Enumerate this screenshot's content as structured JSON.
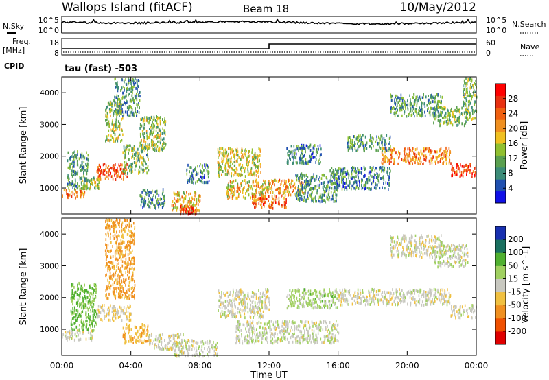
{
  "header": {
    "station": "Wallops Island (fitACF)",
    "beam": "Beam 18",
    "date": "10/May/2012"
  },
  "top_panels": {
    "nsky_label": "N.Sky",
    "nsky_max": "10^5",
    "nsky_min": "10^0",
    "nsearch_max": "10^5",
    "nsearch_min": "10^0",
    "nsearch_label": "N.Search",
    "freq_label_1": "Freq.",
    "freq_label_2": "[MHz]",
    "freq_max": "18",
    "freq_min": "8",
    "nave_max": "60",
    "nave_min": "0",
    "nave_label": "Nave",
    "cpid_label": "CPID",
    "cpid_text": "tau (fast) -503"
  },
  "colors": {
    "power": [
      "#1010e8",
      "#2050b0",
      "#3c8c78",
      "#5aa050",
      "#90c030",
      "#f0c020",
      "#f09020",
      "#f06010",
      "#e83010",
      "#ff0000"
    ],
    "velocity": [
      "#e00000",
      "#f05000",
      "#f09020",
      "#f0c040",
      "#c8c8c0",
      "#a0d060",
      "#50b030",
      "#1a7060",
      "#1830b0"
    ]
  },
  "chart_data": [
    {
      "type": "heatmap",
      "name": "Power",
      "ylabel": "Slant Range [km]",
      "ylim": [
        180,
        4500
      ],
      "yticks": [
        "1000",
        "2000",
        "3000",
        "4000"
      ],
      "xlim": [
        0,
        24
      ],
      "colorbar_label": "Power [dB]",
      "colorbar_ticks": [
        "4",
        "8",
        "12",
        "16",
        "20",
        "24",
        "28"
      ],
      "colorbar_range": [
        0,
        32
      ],
      "echo_bands": [
        {
          "t0": 0.0,
          "t1": 1.3,
          "r0": 700,
          "r1": 1000,
          "value": 22
        },
        {
          "t0": 0.3,
          "t1": 1.5,
          "r0": 1000,
          "r1": 2200,
          "value": 10
        },
        {
          "t0": 1.0,
          "t1": 2.2,
          "r0": 1000,
          "r1": 1400,
          "value": 14
        },
        {
          "t0": 2.0,
          "t1": 3.8,
          "r0": 1300,
          "r1": 1800,
          "value": 25
        },
        {
          "t0": 2.5,
          "t1": 3.5,
          "r0": 2500,
          "r1": 3800,
          "value": 14
        },
        {
          "t0": 3.0,
          "t1": 4.5,
          "r0": 3300,
          "r1": 4500,
          "value": 10
        },
        {
          "t0": 3.5,
          "t1": 5.0,
          "r0": 1500,
          "r1": 2400,
          "value": 12
        },
        {
          "t0": 4.5,
          "t1": 6.0,
          "r0": 2200,
          "r1": 3300,
          "value": 14
        },
        {
          "t0": 4.5,
          "t1": 6.0,
          "r0": 400,
          "r1": 1000,
          "value": 8
        },
        {
          "t0": 6.3,
          "t1": 8.0,
          "r0": 300,
          "r1": 900,
          "value": 18
        },
        {
          "t0": 6.8,
          "t1": 7.8,
          "r0": 180,
          "r1": 500,
          "value": 30
        },
        {
          "t0": 7.2,
          "t1": 8.5,
          "r0": 1200,
          "r1": 1800,
          "value": 8
        },
        {
          "t0": 9.0,
          "t1": 11.5,
          "r0": 1400,
          "r1": 2300,
          "value": 16
        },
        {
          "t0": 9.5,
          "t1": 12.0,
          "r0": 700,
          "r1": 1300,
          "value": 18
        },
        {
          "t0": 11.0,
          "t1": 13.0,
          "r0": 400,
          "r1": 800,
          "value": 24
        },
        {
          "t0": 12.0,
          "t1": 14.0,
          "r0": 800,
          "r1": 1300,
          "value": 20
        },
        {
          "t0": 13.5,
          "t1": 16.0,
          "r0": 600,
          "r1": 1500,
          "value": 10
        },
        {
          "t0": 13.0,
          "t1": 15.0,
          "r0": 1800,
          "r1": 2400,
          "value": 8
        },
        {
          "t0": 15.5,
          "t1": 19.0,
          "r0": 1000,
          "r1": 1700,
          "value": 8
        },
        {
          "t0": 18.5,
          "t1": 22.5,
          "r0": 1800,
          "r1": 2300,
          "value": 22
        },
        {
          "t0": 16.5,
          "t1": 19.0,
          "r0": 2200,
          "r1": 2700,
          "value": 10
        },
        {
          "t0": 19.0,
          "t1": 22.0,
          "r0": 3300,
          "r1": 4000,
          "value": 10
        },
        {
          "t0": 21.5,
          "t1": 23.5,
          "r0": 3000,
          "r1": 3600,
          "value": 12
        },
        {
          "t0": 22.5,
          "t1": 24.0,
          "r0": 1400,
          "r1": 1800,
          "value": 26
        },
        {
          "t0": 23.2,
          "t1": 24.0,
          "r0": 3200,
          "r1": 4500,
          "value": 12
        }
      ]
    },
    {
      "type": "heatmap",
      "name": "Velocity",
      "ylabel": "Slant Range [km]",
      "ylim": [
        180,
        4500
      ],
      "yticks": [
        "1000",
        "2000",
        "3000",
        "4000"
      ],
      "xlim": [
        0,
        24
      ],
      "xlabel": "Time UT",
      "xticks": [
        "00:00",
        "04:00",
        "08:00",
        "12:00",
        "16:00",
        "20:00",
        "00:00"
      ],
      "colorbar_label": "Velocity [m s^-1]",
      "colorbar_ticks": [
        "200",
        "100",
        "50",
        "15",
        "-15",
        "-50",
        "-100",
        "-200"
      ],
      "echo_bands": [
        {
          "t0": 0.0,
          "t1": 1.8,
          "r0": 700,
          "r1": 1000,
          "value": 0
        },
        {
          "t0": 0.5,
          "t1": 2.0,
          "r0": 1000,
          "r1": 2500,
          "value": 60
        },
        {
          "t0": 2.0,
          "t1": 4.0,
          "r0": 1300,
          "r1": 1800,
          "value": -10
        },
        {
          "t0": 2.5,
          "t1": 4.2,
          "r0": 2000,
          "r1": 4500,
          "value": -60
        },
        {
          "t0": 3.5,
          "t1": 5.0,
          "r0": 600,
          "r1": 1200,
          "value": -40
        },
        {
          "t0": 5.0,
          "t1": 7.0,
          "r0": 400,
          "r1": 900,
          "value": 0
        },
        {
          "t0": 6.5,
          "t1": 9.0,
          "r0": 180,
          "r1": 700,
          "value": 5
        },
        {
          "t0": 9.0,
          "t1": 12.0,
          "r0": 1400,
          "r1": 2300,
          "value": 0
        },
        {
          "t0": 10.0,
          "t1": 16.0,
          "r0": 600,
          "r1": 1300,
          "value": 5
        },
        {
          "t0": 13.0,
          "t1": 16.0,
          "r0": 1700,
          "r1": 2300,
          "value": 30
        },
        {
          "t0": 16.0,
          "t1": 22.5,
          "r0": 1800,
          "r1": 2300,
          "value": 0
        },
        {
          "t0": 19.0,
          "t1": 22.0,
          "r0": 3300,
          "r1": 4000,
          "value": 0
        },
        {
          "t0": 21.5,
          "t1": 23.5,
          "r0": 3000,
          "r1": 3700,
          "value": 5
        },
        {
          "t0": 22.5,
          "t1": 24.0,
          "r0": 1400,
          "r1": 1800,
          "value": 0
        }
      ]
    }
  ]
}
